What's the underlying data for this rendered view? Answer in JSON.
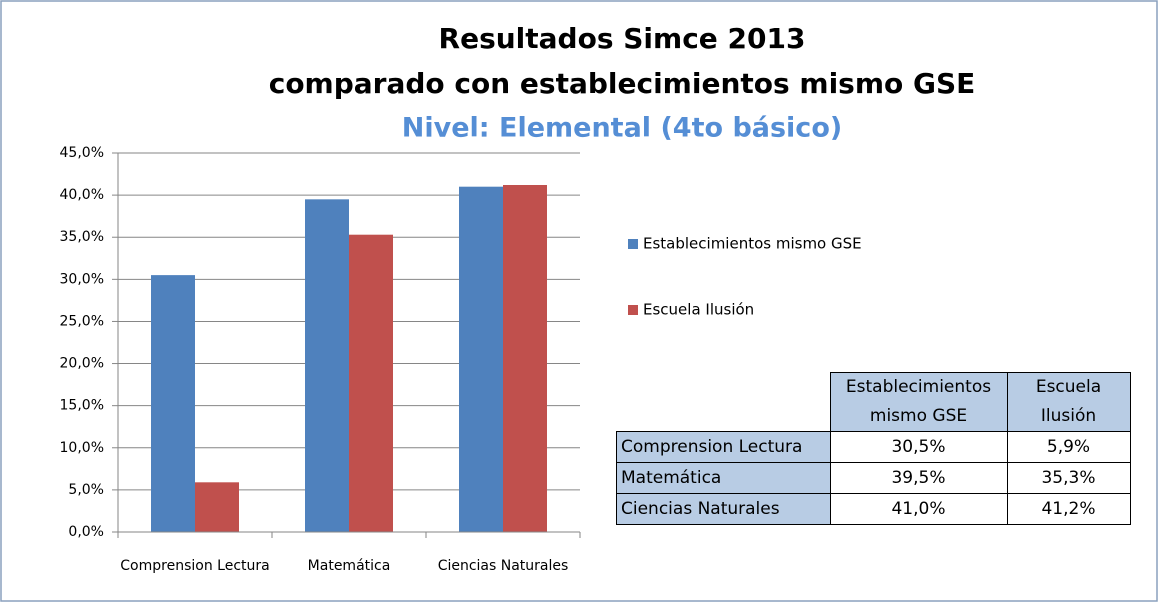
{
  "chart_data": {
    "type": "bar",
    "title": [
      "Resultados Simce 2013",
      "comparado con establecimientos mismo GSE"
    ],
    "subtitle": "Nivel: Elemental (4to básico)",
    "categories": [
      "Comprension Lectura",
      "Matemática",
      "Ciencias Naturales"
    ],
    "series": [
      {
        "name": "Establecimientos mismo GSE",
        "color": "#4f81bd",
        "values": [
          30.5,
          39.5,
          41.0
        ],
        "value_labels": [
          "30,5%",
          "39,5%",
          "41,0%"
        ]
      },
      {
        "name": "Escuela Ilusión",
        "color": "#c0504d",
        "values": [
          5.9,
          35.3,
          41.2
        ],
        "value_labels": [
          "5,9%",
          "35,3%",
          "41,2%"
        ]
      }
    ],
    "ylim": [
      0,
      45
    ],
    "yticks": [
      {
        "value": 0,
        "label": "0,0%"
      },
      {
        "value": 5,
        "label": "5,0%"
      },
      {
        "value": 10,
        "label": "10,0%"
      },
      {
        "value": 15,
        "label": "15,0%"
      },
      {
        "value": 20,
        "label": "20,0%"
      },
      {
        "value": 25,
        "label": "25,0%"
      },
      {
        "value": 30,
        "label": "30,0%"
      },
      {
        "value": 35,
        "label": "35,0%"
      },
      {
        "value": 40,
        "label": "40,0%"
      },
      {
        "value": 45,
        "label": "45,0%"
      }
    ],
    "grid": true,
    "legend": "right"
  }
}
